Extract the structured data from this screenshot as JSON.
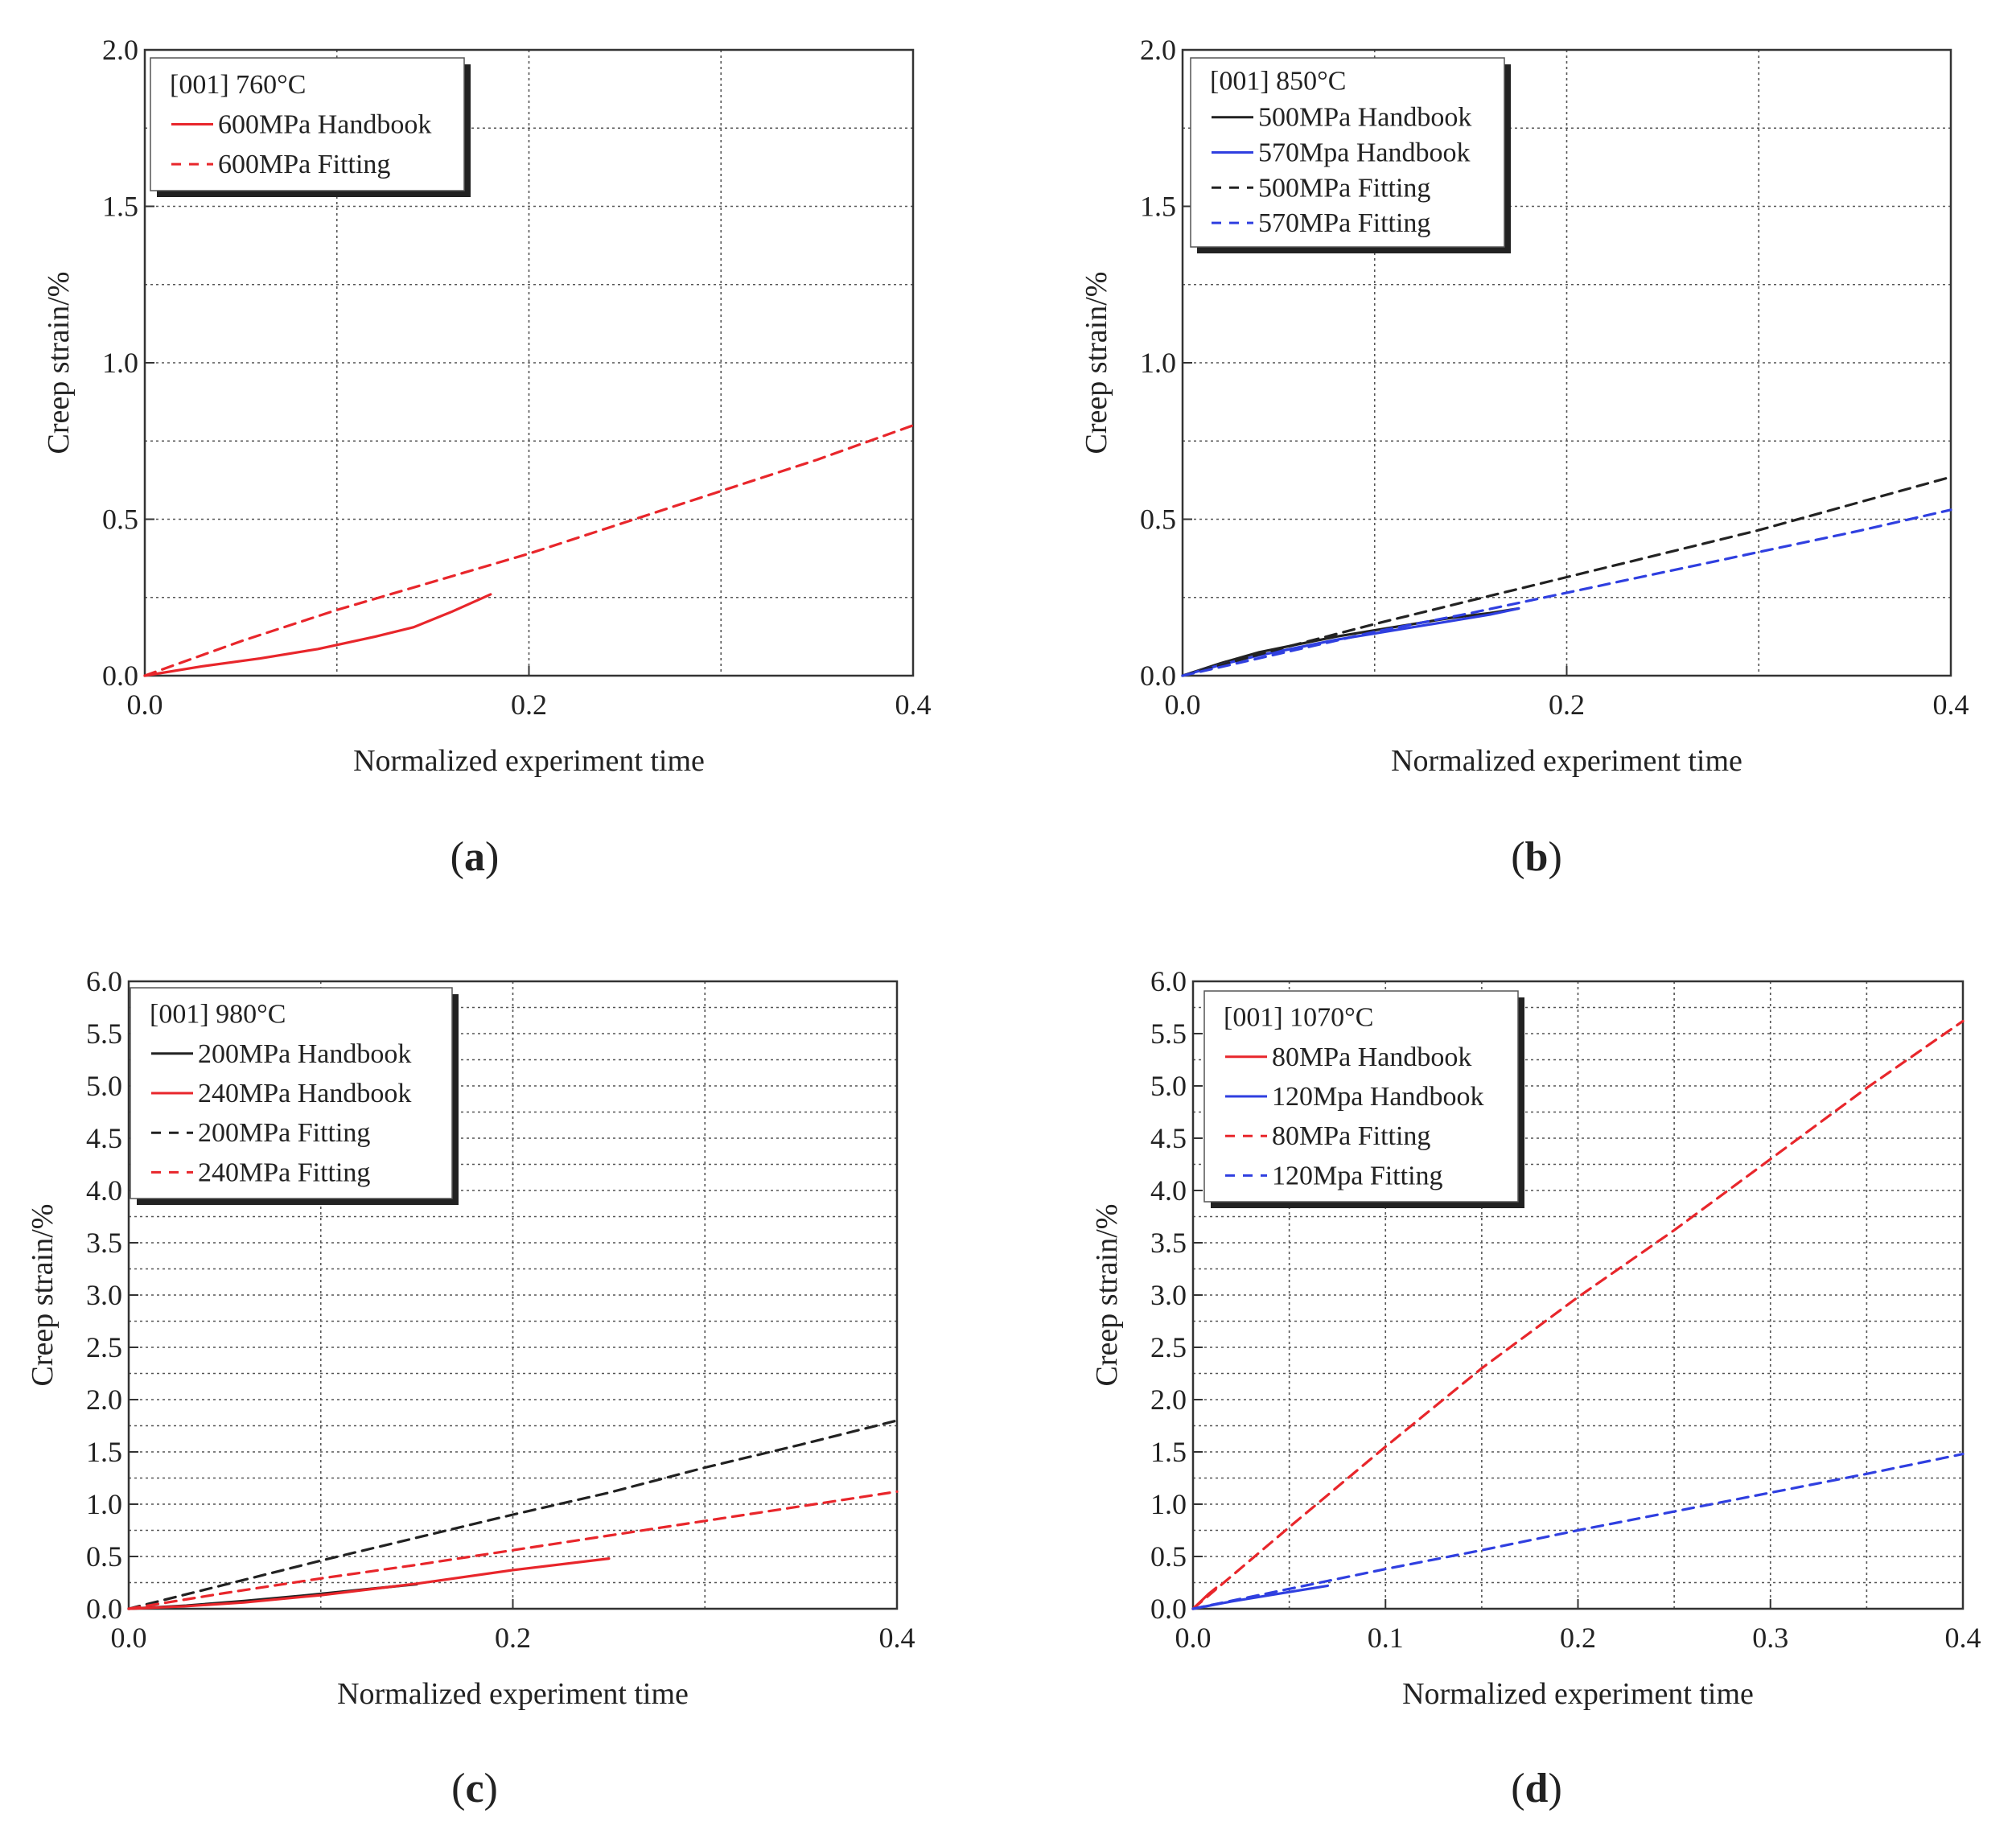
{
  "chart_data": [
    {
      "type": "line",
      "panel": "a",
      "caption_letter": "a",
      "legend_title": "[001] 760°C",
      "xlabel": "Normalized experiment time",
      "ylabel": "Creep strain/%",
      "xlim": [
        0,
        0.4
      ],
      "ylim": [
        0,
        2.0
      ],
      "xticks": [
        0.0,
        0.2,
        0.4
      ],
      "xtick_labels": [
        "0.0",
        "0.2",
        "0.4"
      ],
      "xgrid": [
        0.1,
        0.2,
        0.3
      ],
      "yticks": [
        0.0,
        0.5,
        1.0,
        1.5,
        2.0
      ],
      "ytick_labels": [
        "0.0",
        "0.5",
        "1.0",
        "1.5",
        "2.0"
      ],
      "ygrid": [
        0.25,
        0.5,
        0.75,
        1.0,
        1.25,
        1.5,
        1.75
      ],
      "series": [
        {
          "name": "600MPa Handbook",
          "color": "#e8262b",
          "dashed": false,
          "x": [
            0,
            0.03,
            0.06,
            0.09,
            0.12,
            0.14,
            0.16,
            0.18
          ],
          "y": [
            0,
            0.03,
            0.055,
            0.085,
            0.125,
            0.155,
            0.205,
            0.26
          ]
        },
        {
          "name": "600MPa Fitting",
          "color": "#e8262b",
          "dashed": true,
          "x": [
            0,
            0.05,
            0.1,
            0.15,
            0.2,
            0.25,
            0.3,
            0.35,
            0.4
          ],
          "y": [
            0,
            0.11,
            0.21,
            0.3,
            0.39,
            0.49,
            0.59,
            0.69,
            0.8
          ]
        }
      ]
    },
    {
      "type": "line",
      "panel": "b",
      "caption_letter": "b",
      "legend_title": "[001] 850°C",
      "xlabel": "Normalized experiment time",
      "ylabel": "Creep strain/%",
      "xlim": [
        0,
        0.4
      ],
      "ylim": [
        0,
        2.0
      ],
      "xticks": [
        0.0,
        0.2,
        0.4
      ],
      "xtick_labels": [
        "0.0",
        "0.2",
        "0.4"
      ],
      "xgrid": [
        0.1,
        0.2,
        0.3
      ],
      "yticks": [
        0.0,
        0.5,
        1.0,
        1.5,
        2.0
      ],
      "ytick_labels": [
        "0.0",
        "0.5",
        "1.0",
        "1.5",
        "2.0"
      ],
      "ygrid": [
        0.25,
        0.5,
        0.75,
        1.0,
        1.25,
        1.5,
        1.75
      ],
      "series": [
        {
          "name": "500MPa Handbook",
          "color": "#222222",
          "dashed": false,
          "x": [
            0,
            0.02,
            0.04,
            0.06,
            0.08,
            0.1,
            0.12,
            0.14,
            0.16,
            0.175
          ],
          "y": [
            0,
            0.04,
            0.075,
            0.1,
            0.125,
            0.145,
            0.165,
            0.185,
            0.2,
            0.215
          ]
        },
        {
          "name": "570Mpa Handbook",
          "color": "#2f3fe0",
          "dashed": false,
          "x": [
            0,
            0.02,
            0.04,
            0.06,
            0.08,
            0.1,
            0.12,
            0.14,
            0.16,
            0.175
          ],
          "y": [
            0,
            0.035,
            0.065,
            0.09,
            0.115,
            0.135,
            0.155,
            0.175,
            0.195,
            0.215
          ]
        },
        {
          "name": "500MPa Fitting",
          "color": "#222222",
          "dashed": true,
          "x": [
            0,
            0.05,
            0.1,
            0.15,
            0.2,
            0.25,
            0.3,
            0.35,
            0.4
          ],
          "y": [
            0,
            0.085,
            0.165,
            0.24,
            0.315,
            0.39,
            0.465,
            0.55,
            0.635
          ]
        },
        {
          "name": "570MPa Fitting",
          "color": "#2f3fe0",
          "dashed": true,
          "x": [
            0,
            0.05,
            0.1,
            0.15,
            0.2,
            0.25,
            0.3,
            0.35,
            0.4
          ],
          "y": [
            0,
            0.07,
            0.14,
            0.2,
            0.265,
            0.33,
            0.395,
            0.46,
            0.53
          ]
        }
      ]
    },
    {
      "type": "line",
      "panel": "c",
      "caption_letter": "c",
      "legend_title": "[001] 980°C",
      "xlabel": "Normalized experiment time",
      "ylabel": "Creep strain/%",
      "xlim": [
        0,
        0.4
      ],
      "ylim": [
        0,
        6.0
      ],
      "xticks": [
        0.0,
        0.2,
        0.4
      ],
      "xtick_labels": [
        "0.0",
        "0.2",
        "0.4"
      ],
      "xgrid": [
        0.1,
        0.2,
        0.3
      ],
      "yticks": [
        0.0,
        0.5,
        1.0,
        1.5,
        2.0,
        2.5,
        3.0,
        3.5,
        4.0,
        4.5,
        5.0,
        5.5,
        6.0
      ],
      "ytick_labels": [
        "0.0",
        "0.5",
        "1.0",
        "1.5",
        "2.0",
        "2.5",
        "3.0",
        "3.5",
        "4.0",
        "4.5",
        "5.0",
        "5.5",
        "6.0"
      ],
      "ygrid": [
        0.25,
        0.5,
        0.75,
        1.0,
        1.25,
        1.5,
        1.75,
        2.0,
        2.25,
        2.5,
        2.75,
        3.0,
        3.25,
        3.5,
        3.75,
        4.0,
        4.25,
        4.5,
        4.75,
        5.0,
        5.25,
        5.5,
        5.75
      ],
      "series": [
        {
          "name": "200MPa Handbook",
          "color": "#222222",
          "dashed": false,
          "x": [
            0,
            0.03,
            0.06,
            0.09,
            0.12,
            0.15
          ],
          "y": [
            0,
            0.03,
            0.075,
            0.125,
            0.18,
            0.235
          ]
        },
        {
          "name": "240MPa Handbook",
          "color": "#e8262b",
          "dashed": false,
          "x": [
            0,
            0.03,
            0.06,
            0.1,
            0.15,
            0.2,
            0.25
          ],
          "y": [
            0,
            0.025,
            0.06,
            0.13,
            0.24,
            0.37,
            0.48
          ]
        },
        {
          "name": "200MPa Fitting",
          "color": "#222222",
          "dashed": true,
          "x": [
            0,
            0.05,
            0.1,
            0.15,
            0.2,
            0.25,
            0.3,
            0.35,
            0.4
          ],
          "y": [
            0,
            0.23,
            0.46,
            0.68,
            0.9,
            1.11,
            1.35,
            1.57,
            1.8
          ]
        },
        {
          "name": "240MPa Fitting",
          "color": "#e8262b",
          "dashed": true,
          "x": [
            0,
            0.05,
            0.1,
            0.15,
            0.2,
            0.25,
            0.3,
            0.35,
            0.4
          ],
          "y": [
            0,
            0.15,
            0.29,
            0.42,
            0.56,
            0.7,
            0.84,
            0.98,
            1.12
          ]
        }
      ]
    },
    {
      "type": "line",
      "panel": "d",
      "caption_letter": "d",
      "legend_title": "[001] 1070°C",
      "xlabel": "Normalized experiment time",
      "ylabel": "Creep strain/%",
      "xlim": [
        0,
        0.4
      ],
      "ylim": [
        0,
        6.0
      ],
      "xticks": [
        0.0,
        0.1,
        0.2,
        0.3,
        0.4
      ],
      "xtick_labels": [
        "0.0",
        "0.1",
        "0.2",
        "0.3",
        "0.4"
      ],
      "xgrid": [
        0.05,
        0.1,
        0.15,
        0.2,
        0.25,
        0.3,
        0.35
      ],
      "yticks": [
        0.0,
        0.5,
        1.0,
        1.5,
        2.0,
        2.5,
        3.0,
        3.5,
        4.0,
        4.5,
        5.0,
        5.5,
        6.0
      ],
      "ytick_labels": [
        "0.0",
        "0.5",
        "1.0",
        "1.5",
        "2.0",
        "2.5",
        "3.0",
        "3.5",
        "4.0",
        "4.5",
        "5.0",
        "5.5",
        "6.0"
      ],
      "ygrid": [
        0.25,
        0.5,
        0.75,
        1.0,
        1.25,
        1.5,
        1.75,
        2.0,
        2.25,
        2.5,
        2.75,
        3.0,
        3.25,
        3.5,
        3.75,
        4.0,
        4.25,
        4.5,
        4.75,
        5.0,
        5.25,
        5.5,
        5.75
      ],
      "series": [
        {
          "name": "80MPa Handbook",
          "color": "#e8262b",
          "dashed": false,
          "x": [
            0,
            0.004,
            0.008,
            0.012
          ],
          "y": [
            0,
            0.07,
            0.14,
            0.2
          ]
        },
        {
          "name": "120Mpa Handbook",
          "color": "#2f3fe0",
          "dashed": false,
          "x": [
            0,
            0.02,
            0.04,
            0.06,
            0.07
          ],
          "y": [
            0,
            0.07,
            0.13,
            0.19,
            0.22
          ]
        },
        {
          "name": "80MPa Fitting",
          "color": "#e8262b",
          "dashed": true,
          "x": [
            0,
            0.05,
            0.1,
            0.15,
            0.2,
            0.25,
            0.3,
            0.35,
            0.4
          ],
          "y": [
            0,
            0.78,
            1.55,
            2.3,
            2.98,
            3.62,
            4.3,
            4.98,
            5.62
          ]
        },
        {
          "name": "120Mpa Fitting",
          "color": "#2f3fe0",
          "dashed": true,
          "x": [
            0,
            0.05,
            0.1,
            0.15,
            0.2,
            0.25,
            0.3,
            0.35,
            0.4
          ],
          "y": [
            0,
            0.19,
            0.38,
            0.56,
            0.75,
            0.93,
            1.11,
            1.29,
            1.48
          ]
        }
      ]
    }
  ]
}
